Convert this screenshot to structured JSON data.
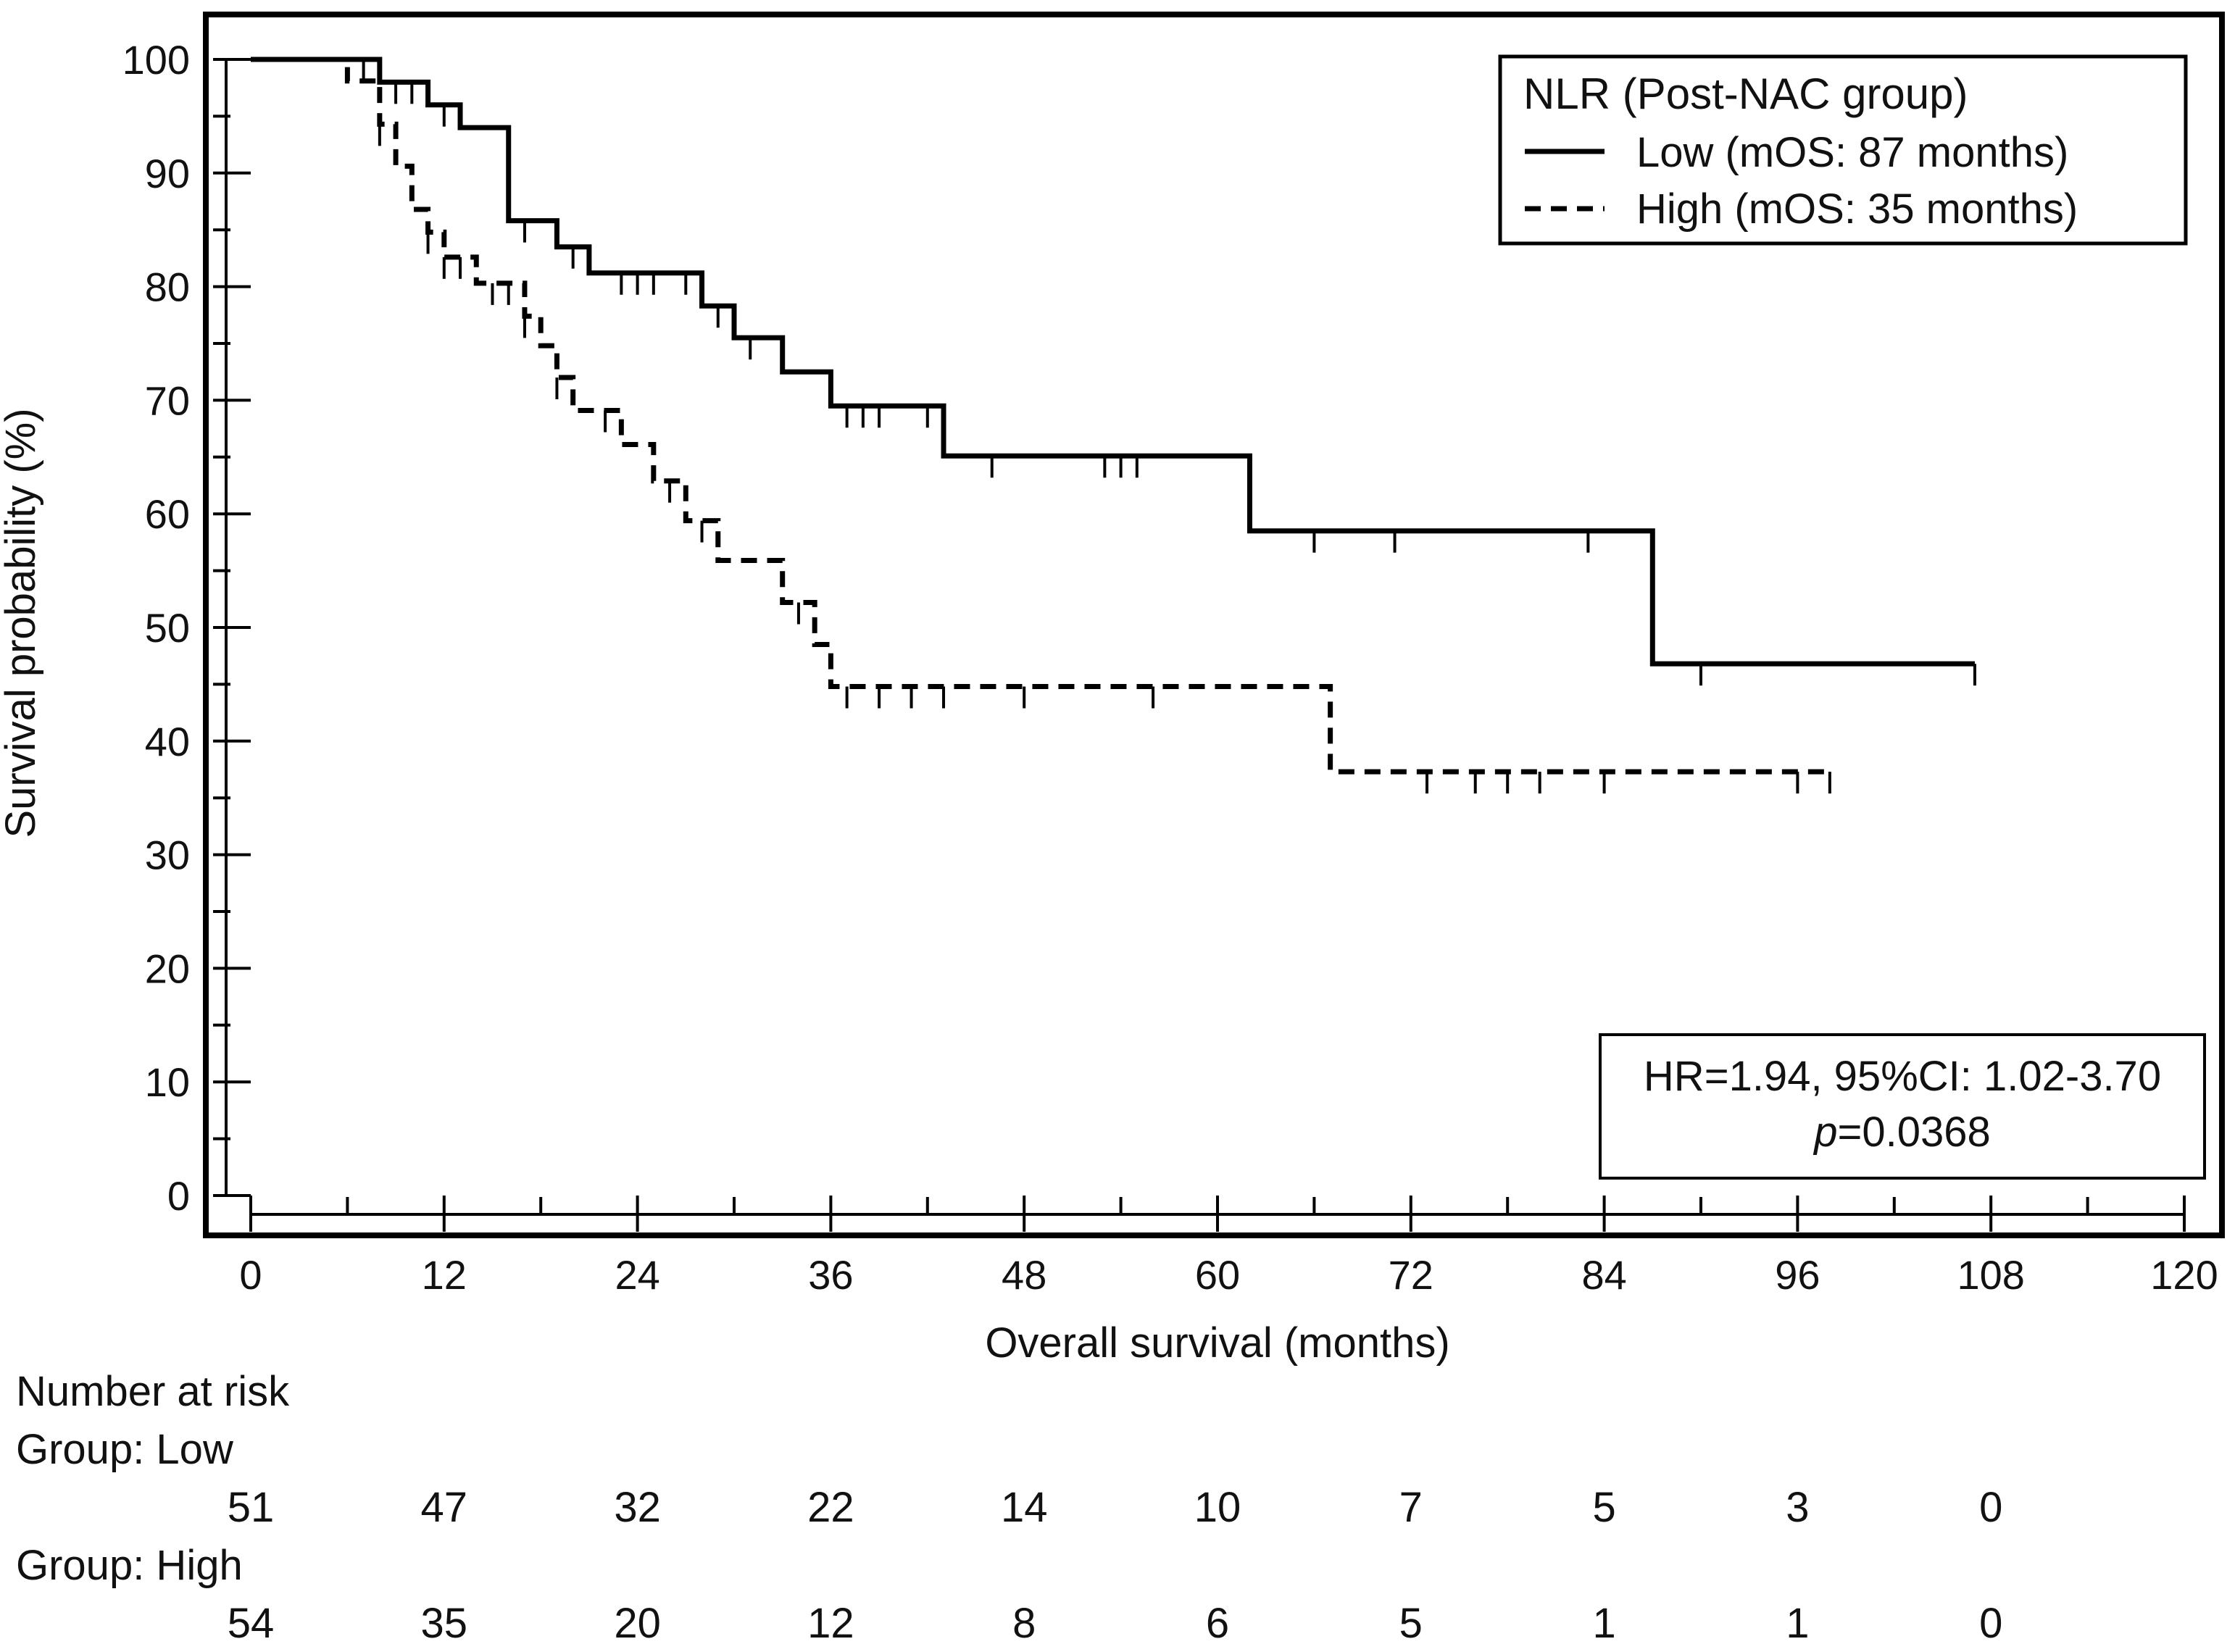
{
  "chart_data": {
    "type": "line",
    "subtype": "kaplan-meier",
    "title": "",
    "xlabel": "Overall survival (months)",
    "ylabel": "Survival probability (%)",
    "xlim": [
      0,
      120
    ],
    "ylim": [
      0,
      100
    ],
    "x_ticks": [
      0,
      12,
      24,
      36,
      48,
      60,
      72,
      84,
      96,
      108,
      120
    ],
    "y_ticks": [
      0,
      10,
      20,
      30,
      40,
      50,
      60,
      70,
      80,
      90,
      100
    ],
    "x_tick_labels": [
      "0",
      "12",
      "24",
      "36",
      "48",
      "60",
      "72",
      "84",
      "96",
      "108",
      "120"
    ],
    "y_tick_labels": [
      "0",
      "10",
      "20",
      "30",
      "40",
      "50",
      "60",
      "70",
      "80",
      "90",
      "100"
    ],
    "grid": false,
    "legend_position": "top-right",
    "legend": {
      "title": "NLR (Post-NAC group)",
      "entries": [
        "Low (mOS: 87 months)",
        "High (mOS: 35 months)"
      ]
    },
    "series": [
      {
        "name": "Low",
        "line_style": "solid",
        "steps": [
          [
            0,
            100
          ],
          [
            8,
            98
          ],
          [
            11,
            96
          ],
          [
            13,
            94
          ],
          [
            16,
            85.8
          ],
          [
            19,
            83.5
          ],
          [
            21,
            81.2
          ],
          [
            28,
            78.3
          ],
          [
            30,
            75.5
          ],
          [
            33,
            72.5
          ],
          [
            36,
            69.5
          ],
          [
            43,
            65.1
          ],
          [
            62,
            58.5
          ],
          [
            87,
            46.8
          ],
          [
            107,
            46.8
          ]
        ],
        "censored": [
          7,
          9,
          10,
          12,
          17,
          20,
          23,
          24,
          25,
          27,
          29,
          31,
          37,
          38,
          39,
          42,
          46,
          53,
          54,
          55,
          66,
          71,
          83,
          90,
          107
        ]
      },
      {
        "name": "High",
        "line_style": "dashed",
        "steps": [
          [
            0,
            100
          ],
          [
            6,
            98.1
          ],
          [
            8,
            94.3
          ],
          [
            9,
            90.6
          ],
          [
            10,
            86.8
          ],
          [
            11,
            84.8
          ],
          [
            12,
            82.6
          ],
          [
            14,
            80.3
          ],
          [
            17,
            77.4
          ],
          [
            18,
            74.8
          ],
          [
            19,
            72
          ],
          [
            20,
            69.1
          ],
          [
            23,
            66.1
          ],
          [
            25,
            62.9
          ],
          [
            27,
            59.4
          ],
          [
            29,
            55.9
          ],
          [
            33,
            52.2
          ],
          [
            35,
            48.5
          ],
          [
            36,
            44.8
          ],
          [
            67,
            37.3
          ],
          [
            98,
            37.3
          ]
        ],
        "censored": [
          8,
          11,
          12,
          13,
          15,
          16,
          17,
          19,
          22,
          26,
          28,
          34,
          37,
          39,
          41,
          43,
          48,
          56,
          73,
          76,
          78,
          80,
          84,
          96,
          98
        ]
      }
    ],
    "annotation": {
      "line1": "HR=1.94, 95%CI: 1.02-3.70",
      "p_symbol": "p",
      "p_value": "=0.0368"
    }
  },
  "risk_table": {
    "header": "Number at risk",
    "time_points": [
      0,
      12,
      24,
      36,
      48,
      60,
      72,
      84,
      96,
      108
    ],
    "groups": [
      {
        "label": "Group: Low",
        "counts": [
          "51",
          "47",
          "32",
          "22",
          "14",
          "10",
          "7",
          "5",
          "3",
          "0"
        ]
      },
      {
        "label": "Group: High",
        "counts": [
          "54",
          "35",
          "20",
          "12",
          "8",
          "6",
          "5",
          "1",
          "1",
          "0"
        ]
      }
    ]
  }
}
